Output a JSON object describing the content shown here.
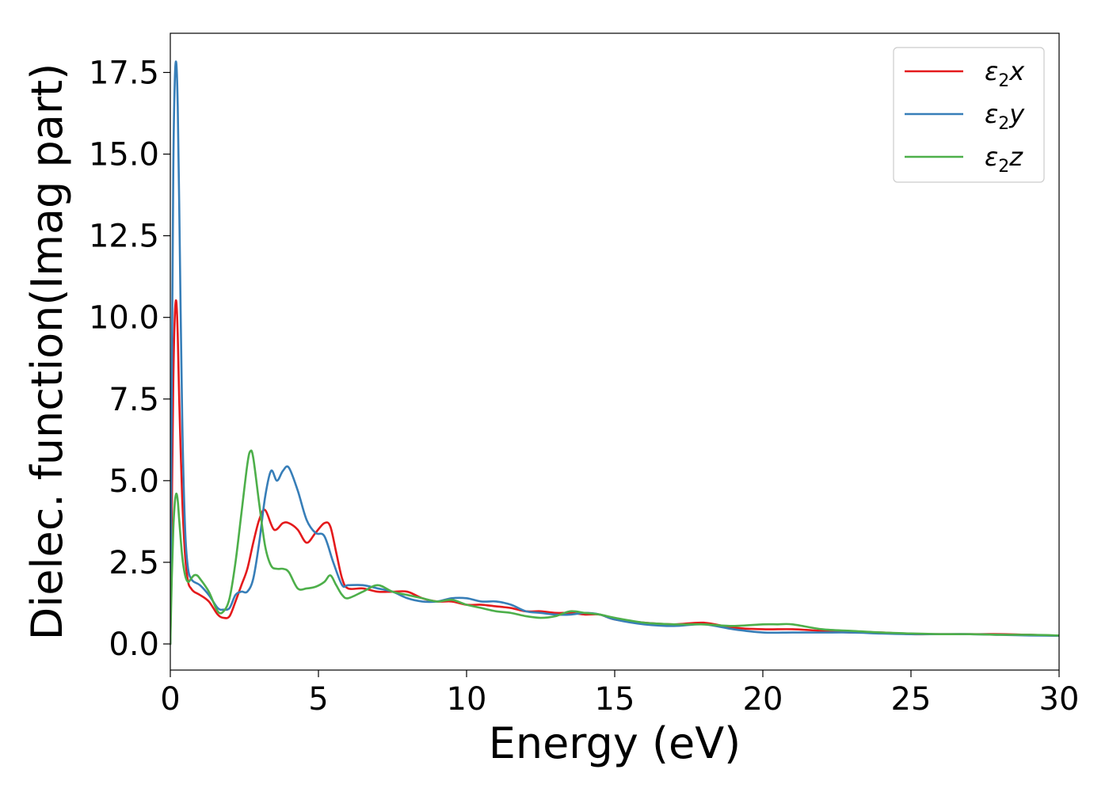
{
  "chart_data": {
    "type": "line",
    "title": "",
    "xlabel": "Energy (eV)",
    "ylabel": "Dielec. function(Imag part)",
    "xlim": [
      0,
      30
    ],
    "ylim": [
      -0.8,
      18.7
    ],
    "xticks": [
      0,
      5,
      10,
      15,
      20,
      25,
      30
    ],
    "xtick_labels": [
      "0",
      "5",
      "10",
      "15",
      "20",
      "25",
      "30"
    ],
    "yticks": [
      0.0,
      2.5,
      5.0,
      7.5,
      10.0,
      12.5,
      15.0,
      17.5
    ],
    "ytick_labels": [
      "0.0",
      "2.5",
      "5.0",
      "7.5",
      "10.0",
      "12.5",
      "15.0",
      "17.5"
    ],
    "grid": false,
    "legend_position": "top-right",
    "series": [
      {
        "name": "ε2x",
        "legend_base": "ε",
        "legend_sub": "2",
        "legend_var": "x",
        "color": "#e41a1c",
        "x": [
          0,
          0.05,
          0.1,
          0.15,
          0.2,
          0.25,
          0.3,
          0.4,
          0.5,
          0.6,
          0.7,
          0.8,
          1.0,
          1.3,
          1.6,
          1.8,
          2.0,
          2.2,
          2.4,
          2.6,
          2.8,
          3.0,
          3.2,
          3.5,
          3.8,
          4.0,
          4.3,
          4.6,
          4.9,
          5.2,
          5.4,
          5.6,
          5.8,
          6.0,
          6.5,
          7.0,
          7.5,
          8.0,
          8.5,
          9.0,
          9.5,
          10.0,
          10.5,
          11.0,
          11.5,
          12.0,
          12.5,
          13.0,
          13.5,
          14.0,
          14.5,
          15.0,
          16.0,
          17.0,
          18.0,
          19.0,
          20.0,
          21.0,
          22.0,
          23.0,
          24.0,
          25.0,
          26.0,
          27.0,
          28.0,
          29.0,
          30.0
        ],
        "y": [
          0.0,
          4.0,
          8.0,
          10.0,
          10.5,
          9.5,
          7.5,
          4.5,
          2.7,
          1.9,
          1.7,
          1.6,
          1.5,
          1.3,
          0.9,
          0.8,
          0.85,
          1.3,
          1.8,
          2.3,
          3.1,
          3.8,
          4.1,
          3.5,
          3.7,
          3.7,
          3.5,
          3.1,
          3.4,
          3.7,
          3.6,
          2.8,
          2.0,
          1.7,
          1.7,
          1.6,
          1.6,
          1.6,
          1.4,
          1.3,
          1.3,
          1.2,
          1.2,
          1.15,
          1.1,
          1.0,
          1.0,
          0.95,
          0.95,
          0.9,
          0.9,
          0.75,
          0.65,
          0.6,
          0.65,
          0.5,
          0.45,
          0.45,
          0.4,
          0.35,
          0.35,
          0.3,
          0.3,
          0.3,
          0.3,
          0.28,
          0.25
        ]
      },
      {
        "name": "ε2y",
        "legend_base": "ε",
        "legend_sub": "2",
        "legend_var": "y",
        "color": "#377eb8",
        "x": [
          0,
          0.05,
          0.1,
          0.15,
          0.2,
          0.25,
          0.3,
          0.4,
          0.5,
          0.6,
          0.7,
          0.8,
          1.0,
          1.3,
          1.6,
          1.8,
          2.0,
          2.2,
          2.4,
          2.6,
          2.8,
          3.0,
          3.2,
          3.4,
          3.6,
          3.8,
          4.0,
          4.3,
          4.6,
          4.9,
          5.2,
          5.5,
          5.8,
          6.0,
          6.5,
          7.0,
          7.5,
          8.0,
          8.5,
          9.0,
          9.5,
          10.0,
          10.5,
          11.0,
          11.5,
          12.0,
          12.5,
          13.0,
          13.5,
          14.0,
          14.5,
          15.0,
          16.0,
          17.0,
          18.0,
          19.0,
          20.0,
          21.0,
          22.0,
          23.0,
          24.0,
          25.0,
          26.0,
          27.0,
          28.0,
          29.0,
          30.0
        ],
        "y": [
          0.0,
          8.0,
          14.5,
          17.2,
          17.8,
          16.5,
          13.5,
          7.0,
          3.5,
          2.3,
          2.0,
          1.9,
          1.8,
          1.5,
          1.1,
          1.05,
          1.1,
          1.5,
          1.6,
          1.6,
          2.0,
          3.1,
          4.5,
          5.3,
          5.0,
          5.3,
          5.4,
          4.7,
          3.8,
          3.4,
          3.3,
          2.5,
          1.8,
          1.8,
          1.8,
          1.7,
          1.6,
          1.4,
          1.3,
          1.3,
          1.4,
          1.4,
          1.3,
          1.3,
          1.2,
          1.0,
          0.95,
          0.9,
          0.9,
          0.95,
          0.9,
          0.75,
          0.6,
          0.55,
          0.6,
          0.45,
          0.35,
          0.35,
          0.35,
          0.35,
          0.32,
          0.3,
          0.3,
          0.3,
          0.28,
          0.26,
          0.25
        ]
      },
      {
        "name": "ε2z",
        "legend_base": "ε",
        "legend_sub": "2",
        "legend_var": "z",
        "color": "#4daf4a",
        "x": [
          0,
          0.05,
          0.1,
          0.15,
          0.2,
          0.25,
          0.3,
          0.4,
          0.5,
          0.6,
          0.7,
          0.8,
          0.9,
          1.0,
          1.3,
          1.6,
          1.8,
          2.0,
          2.2,
          2.4,
          2.6,
          2.7,
          2.8,
          3.0,
          3.2,
          3.4,
          3.6,
          3.8,
          4.0,
          4.3,
          4.6,
          4.9,
          5.2,
          5.4,
          5.6,
          5.8,
          6.0,
          6.5,
          7.0,
          7.5,
          8.0,
          8.5,
          9.0,
          9.5,
          10.0,
          10.5,
          11.0,
          11.5,
          12.0,
          12.5,
          13.0,
          13.5,
          14.0,
          14.5,
          15.0,
          16.0,
          17.0,
          18.0,
          19.0,
          20.0,
          20.5,
          21.0,
          22.0,
          23.0,
          24.0,
          25.0,
          26.0,
          27.0,
          28.0,
          29.0,
          30.0
        ],
        "y": [
          0.0,
          2.0,
          3.5,
          4.3,
          4.6,
          4.4,
          3.8,
          2.7,
          2.1,
          1.9,
          2.0,
          2.1,
          2.1,
          2.0,
          1.6,
          1.0,
          1.0,
          1.4,
          2.5,
          4.0,
          5.5,
          5.9,
          5.7,
          4.3,
          3.0,
          2.4,
          2.3,
          2.3,
          2.2,
          1.7,
          1.7,
          1.75,
          1.9,
          2.1,
          1.8,
          1.5,
          1.4,
          1.6,
          1.8,
          1.6,
          1.5,
          1.4,
          1.3,
          1.35,
          1.2,
          1.1,
          1.0,
          0.95,
          0.85,
          0.8,
          0.85,
          1.0,
          0.95,
          0.9,
          0.8,
          0.65,
          0.6,
          0.6,
          0.55,
          0.6,
          0.6,
          0.6,
          0.45,
          0.4,
          0.35,
          0.32,
          0.3,
          0.3,
          0.28,
          0.28,
          0.26
        ]
      }
    ]
  }
}
